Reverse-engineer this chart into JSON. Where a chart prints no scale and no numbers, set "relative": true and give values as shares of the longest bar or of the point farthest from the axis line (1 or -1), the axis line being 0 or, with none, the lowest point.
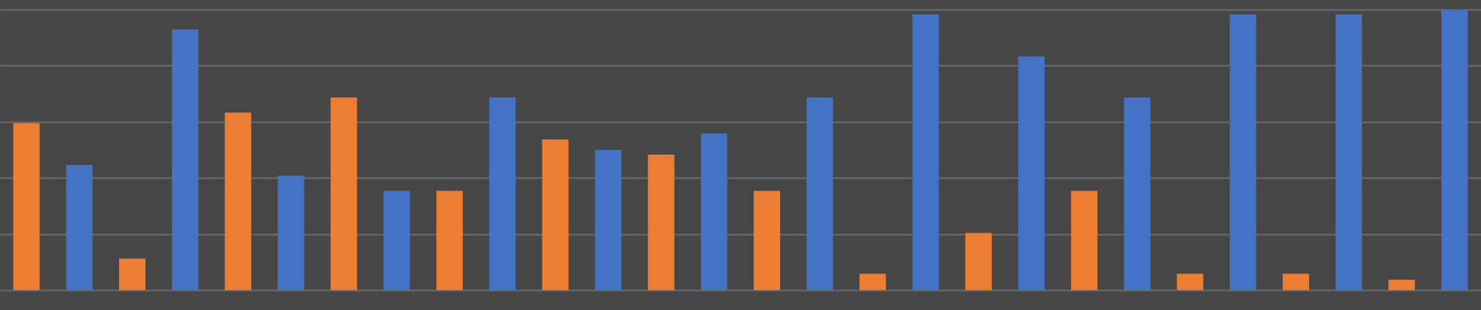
{
  "chart_data": {
    "type": "bar",
    "relative": true,
    "grid": "y",
    "categories": [
      null,
      null,
      null,
      null,
      null,
      null,
      null,
      null,
      null,
      null,
      null,
      null,
      null,
      null,
      null,
      null,
      null,
      null,
      null,
      null,
      null,
      null,
      null,
      null,
      null,
      null,
      null,
      null
    ],
    "values": [
      0.595,
      0.446,
      0.112,
      0.929,
      0.633,
      0.408,
      0.687,
      0.354,
      0.354,
      0.687,
      0.537,
      0.5,
      0.483,
      0.558,
      0.354,
      0.687,
      0.058,
      0.983,
      0.204,
      0.833,
      0.354,
      0.687,
      0.058,
      0.983,
      0.058,
      0.983,
      0.037,
      1
    ],
    "colors": [
      "#ed7d31",
      "#4472c4",
      "#ed7d31",
      "#4472c4",
      "#ed7d31",
      "#4472c4",
      "#ed7d31",
      "#4472c4",
      "#ed7d31",
      "#4472c4",
      "#ed7d31",
      "#4472c4",
      "#ed7d31",
      "#4472c4",
      "#ed7d31",
      "#4472c4",
      "#ed7d31",
      "#4472c4",
      "#ed7d31",
      "#4472c4",
      "#ed7d31",
      "#4472c4",
      "#ed7d31",
      "#4472c4",
      "#ed7d31",
      "#4472c4",
      "#ed7d31",
      "#4472c4"
    ]
  }
}
